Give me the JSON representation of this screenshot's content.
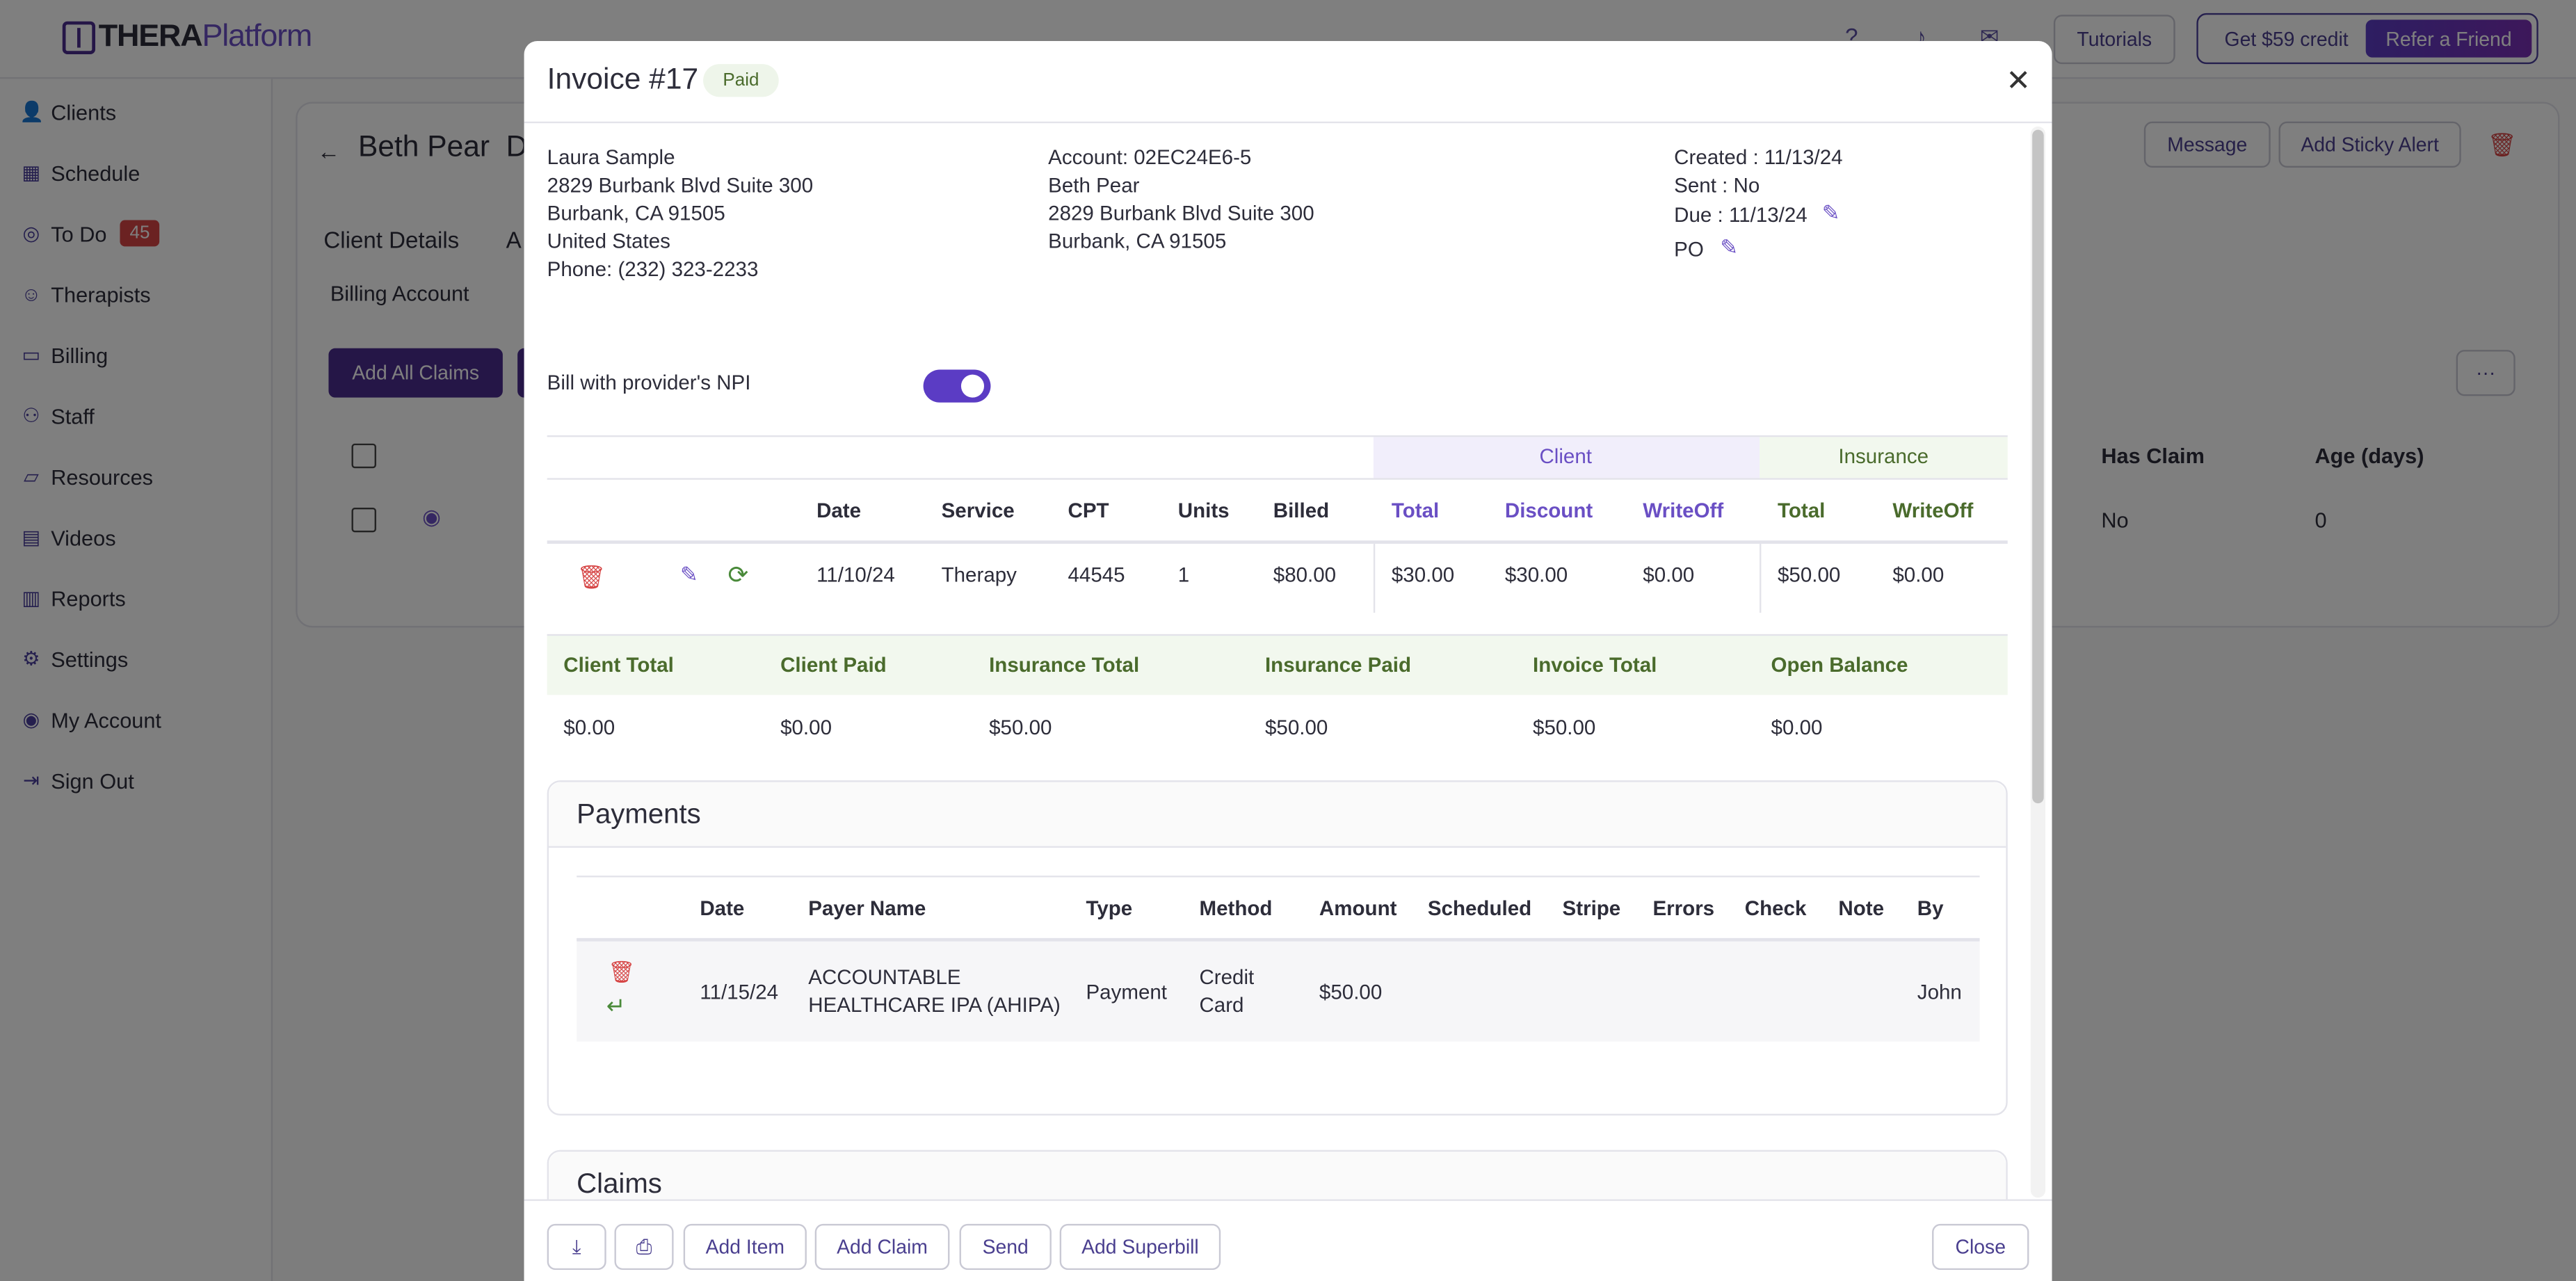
{
  "app": {
    "logo_a": "THERA",
    "logo_b": "Platform"
  },
  "topbar": {
    "tutorials": "Tutorials",
    "credit": "Get $59 credit",
    "refer": "Refer a Friend"
  },
  "sidebar": {
    "items": [
      {
        "label": "Clients",
        "icon": "user-icon"
      },
      {
        "label": "Schedule",
        "icon": "calendar-icon"
      },
      {
        "label": "To Do",
        "icon": "check-circle-icon",
        "badge": "45"
      },
      {
        "label": "Therapists",
        "icon": "therapist-icon"
      },
      {
        "label": "Billing",
        "icon": "card-icon"
      },
      {
        "label": "Staff",
        "icon": "staff-icon"
      },
      {
        "label": "Resources",
        "icon": "folder-icon"
      },
      {
        "label": "Videos",
        "icon": "video-icon"
      },
      {
        "label": "Reports",
        "icon": "chart-icon"
      },
      {
        "label": "Settings",
        "icon": "gear-icon"
      },
      {
        "label": "My Account",
        "icon": "account-icon"
      },
      {
        "label": "Sign Out",
        "icon": "sign-out-icon"
      }
    ]
  },
  "background": {
    "client_name": "Beth Pear",
    "client_tail": "D",
    "message": "Message",
    "sticky": "Add Sticky Alert",
    "tab_client_details": "Client Details",
    "tab_a": "A",
    "subtab_billing": "Billing Account",
    "add_all_claims": "Add All Claims",
    "col_has_claim": "Has Claim",
    "col_age": "Age (days)",
    "row_has_claim": "No",
    "row_age": "0"
  },
  "invoice": {
    "title": "Invoice #17",
    "status": "Paid",
    "from": [
      "Laura Sample",
      "2829 Burbank Blvd Suite 300",
      "Burbank, CA 91505",
      "United States",
      "Phone: (232) 323-2233"
    ],
    "to": [
      "Account: 02EC24E6-5",
      "Beth Pear",
      "2829 Burbank Blvd Suite 300",
      "Burbank, CA 91505"
    ],
    "created": "Created : 11/13/24",
    "sent": "Sent : No",
    "due": "Due : 11/13/24",
    "po": "PO",
    "npi_label": "Bill with provider's NPI",
    "group_client": "Client",
    "group_insurance": "Insurance",
    "item_headers": {
      "date": "Date",
      "service": "Service",
      "cpt": "CPT",
      "units": "Units",
      "billed": "Billed",
      "c_total": "Total",
      "c_discount": "Discount",
      "c_writeoff": "WriteOff",
      "i_total": "Total",
      "i_writeoff": "WriteOff"
    },
    "item": {
      "date": "11/10/24",
      "service": "Therapy",
      "cpt": "44545",
      "units": "1",
      "billed": "$80.00",
      "c_total": "$30.00",
      "c_discount": "$30.00",
      "c_writeoff": "$0.00",
      "i_total": "$50.00",
      "i_writeoff": "$0.00"
    },
    "summary_headers": [
      "Client Total",
      "Client Paid",
      "Insurance Total",
      "Insurance Paid",
      "Invoice Total",
      "Open Balance"
    ],
    "summary_values": [
      "$0.00",
      "$0.00",
      "$50.00",
      "$50.00",
      "$50.00",
      "$0.00"
    ],
    "payments_title": "Payments",
    "payment_headers": [
      "Date",
      "Payer Name",
      "Type",
      "Method",
      "Amount",
      "Scheduled",
      "Stripe",
      "Errors",
      "Check",
      "Note",
      "By"
    ],
    "payment": {
      "date": "11/15/24",
      "payer_1": "ACCOUNTABLE",
      "payer_2": "HEALTHCARE IPA (AHIPA)",
      "type": "Payment",
      "method_1": "Credit",
      "method_2": "Card",
      "amount": "$50.00",
      "by": "John"
    },
    "claims_title": "Claims"
  },
  "footer": {
    "add_item": "Add Item",
    "add_claim": "Add Claim",
    "send": "Send",
    "add_superbill": "Add Superbill",
    "close": "Close"
  }
}
